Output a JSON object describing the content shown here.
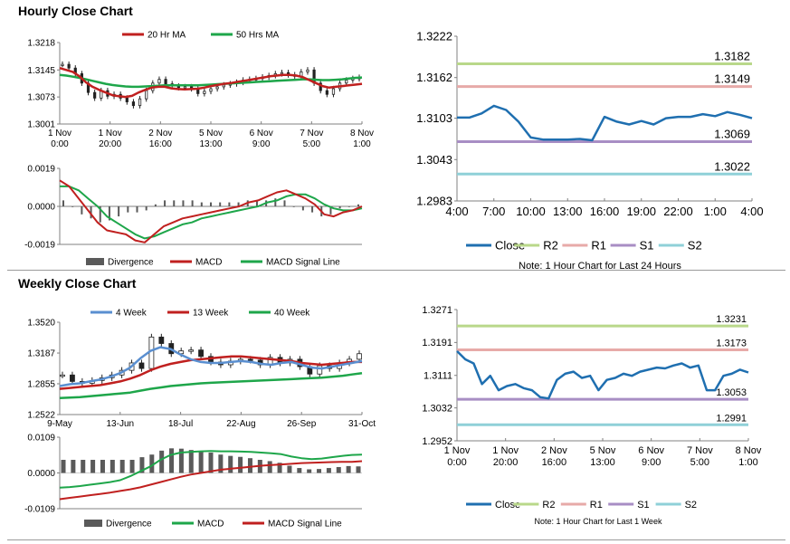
{
  "sections": {
    "hourly_title": "Hourly Close Chart",
    "weekly_title": "Weekly Close Chart"
  },
  "colors": {
    "ma20": "#c0201f",
    "ma50": "#1ea64a",
    "close": "#1f6fb0",
    "r2": "#b9d88a",
    "r1": "#e7aaa8",
    "s1": "#a88ec4",
    "s2": "#8fd0d8",
    "divergence": "#5a5a5a",
    "wk4": "#5a8fd0"
  },
  "chart_data": [
    {
      "id": "hourly_price",
      "type": "candlestick",
      "legend": [
        "20 Hr MA",
        "50 Hrs MA"
      ],
      "yticks": [
        "1.3218",
        "1.3145",
        "1.3073",
        "1.3001"
      ],
      "ylim": [
        1.3001,
        1.3218
      ],
      "xticks": [
        [
          "1 Nov",
          "0:00"
        ],
        [
          "1 Nov",
          "20:00"
        ],
        [
          "2 Nov",
          "16:00"
        ],
        [
          "5 Nov",
          "13:00"
        ],
        [
          "6 Nov",
          "9:00"
        ],
        [
          "7 Nov",
          "5:00"
        ],
        [
          "8 Nov",
          "1:00"
        ]
      ],
      "series": [
        {
          "name": "Close",
          "values": [
            1.316,
            1.315,
            1.3135,
            1.311,
            1.3085,
            1.307,
            1.309,
            1.3075,
            1.308,
            1.307,
            1.306,
            1.305,
            1.3068,
            1.309,
            1.311,
            1.312,
            1.3108,
            1.3102,
            1.3098,
            1.31,
            1.3095,
            1.3082,
            1.3088,
            1.3095,
            1.31,
            1.3105,
            1.3108,
            1.3112,
            1.3118,
            1.312,
            1.3122,
            1.3126,
            1.313,
            1.3135,
            1.3138,
            1.3132,
            1.3128,
            1.314,
            1.3145,
            1.311,
            1.309,
            1.308,
            1.3095,
            1.311,
            1.3118,
            1.3122,
            1.3125
          ]
        },
        {
          "name": "20 Hr MA",
          "values": [
            1.315,
            1.3145,
            1.314,
            1.3128,
            1.3112,
            1.31,
            1.3092,
            1.3085,
            1.3078,
            1.3075,
            1.3073,
            1.3076,
            1.3085,
            1.3092,
            1.3098,
            1.31,
            1.31,
            1.3096,
            1.3094,
            1.3093,
            1.3094,
            1.3095,
            1.3098,
            1.3102,
            1.3105,
            1.3108,
            1.311,
            1.3113,
            1.3116,
            1.3119,
            1.3122,
            1.3125,
            1.3128,
            1.313,
            1.3132,
            1.3132,
            1.313,
            1.3126,
            1.3118,
            1.311,
            1.3102,
            1.3098,
            1.31,
            1.3102,
            1.3104,
            1.3106,
            1.3108
          ]
        },
        {
          "name": "50 Hrs MA",
          "values": [
            1.3132,
            1.313,
            1.3127,
            1.3124,
            1.312,
            1.3116,
            1.3112,
            1.3108,
            1.3105,
            1.3103,
            1.3101,
            1.31,
            1.31,
            1.3101,
            1.3102,
            1.3103,
            1.3104,
            1.3104,
            1.3104,
            1.3104,
            1.3104,
            1.3104,
            1.3105,
            1.3106,
            1.3107,
            1.3108,
            1.3109,
            1.311,
            1.3111,
            1.3112,
            1.3113,
            1.3114,
            1.3115,
            1.3116,
            1.3117,
            1.3118,
            1.3119,
            1.312,
            1.312,
            1.3119,
            1.3118,
            1.3118,
            1.3119,
            1.312,
            1.3122,
            1.3124,
            1.3125
          ]
        }
      ]
    },
    {
      "id": "hourly_macd",
      "type": "macd",
      "legend": [
        "Divergence",
        "MACD",
        "MACD Signal Line"
      ],
      "yticks": [
        "0.0019",
        "0.0000",
        "-0.0019"
      ],
      "ylim": [
        -0.0019,
        0.0019
      ],
      "series": [
        {
          "name": "MACD",
          "values": [
            0.0013,
            0.001,
            0.0004,
            -0.0002,
            -0.0008,
            -0.0012,
            -0.0013,
            -0.0014,
            -0.0017,
            -0.0018,
            -0.0014,
            -0.001,
            -0.0008,
            -0.0006,
            -0.0005,
            -0.0004,
            -0.0003,
            -0.0002,
            -0.0001,
            0.0,
            0.0002,
            0.0003,
            0.0005,
            0.0007,
            0.0008,
            0.0006,
            0.0004,
            0.0001,
            -0.0004,
            -0.0005,
            -0.0003,
            -0.0002,
            0.0
          ]
        },
        {
          "name": "MACD Signal Line",
          "values": [
            0.001,
            0.001,
            0.0008,
            0.0004,
            0.0,
            -0.0005,
            -0.0008,
            -0.0011,
            -0.0014,
            -0.0016,
            -0.0015,
            -0.0013,
            -0.0011,
            -0.0009,
            -0.0008,
            -0.0006,
            -0.0005,
            -0.0004,
            -0.0003,
            -0.0002,
            -0.0001,
            0.0,
            0.0002,
            0.0003,
            0.0005,
            0.0006,
            0.0006,
            0.0004,
            0.0001,
            -0.0001,
            -0.0002,
            -0.0002,
            -0.0001
          ]
        },
        {
          "name": "Divergence",
          "values": [
            0.0003,
            0.0,
            -0.0004,
            -0.0006,
            -0.0008,
            -0.0007,
            -0.0005,
            -0.0003,
            -0.0003,
            -0.0002,
            0.0001,
            0.0003,
            0.0003,
            0.0003,
            0.0003,
            0.0002,
            0.0002,
            0.0002,
            0.0002,
            0.0002,
            0.0003,
            0.0003,
            0.0003,
            0.0004,
            0.0003,
            0.0,
            -0.0002,
            -0.0003,
            -0.0005,
            -0.0004,
            -0.0001,
            0.0,
            0.0001
          ]
        }
      ]
    },
    {
      "id": "hourly_pivot",
      "type": "line",
      "legend": [
        "Close",
        "R2",
        "R1",
        "S1",
        "S2"
      ],
      "note": "Note: 1 Hour Chart for Last 24 Hours",
      "yticks": [
        "1.3222",
        "1.3162",
        "1.3103",
        "1.3043",
        "1.2983"
      ],
      "ylim": [
        1.2983,
        1.3222
      ],
      "xticks": [
        "4:00",
        "7:00",
        "10:00",
        "13:00",
        "16:00",
        "19:00",
        "22:00",
        "1:00",
        "4:00"
      ],
      "levels": [
        {
          "name": "R2",
          "value": 1.3182,
          "label": "1.3182"
        },
        {
          "name": "R1",
          "value": 1.3149,
          "label": "1.3149"
        },
        {
          "name": "S1",
          "value": 1.3069,
          "label": "1.3069"
        },
        {
          "name": "S2",
          "value": 1.3022,
          "label": "1.3022"
        }
      ],
      "series": [
        {
          "name": "Close",
          "values": [
            1.3104,
            1.3104,
            1.311,
            1.3121,
            1.3115,
            1.3098,
            1.3075,
            1.3072,
            1.3072,
            1.3072,
            1.3073,
            1.3071,
            1.3105,
            1.3098,
            1.3094,
            1.3099,
            1.3094,
            1.3103,
            1.3105,
            1.3105,
            1.3109,
            1.3106,
            1.3112,
            1.3108,
            1.3103
          ]
        }
      ]
    },
    {
      "id": "weekly_pivot",
      "type": "line",
      "legend": [
        "Close",
        "R2",
        "R1",
        "S1",
        "S2"
      ],
      "note": "Note: 1 Hour Chart for Last 1 Week",
      "yticks": [
        "1.3271",
        "1.3191",
        "1.3111",
        "1.3032",
        "1.2952"
      ],
      "ylim": [
        1.2952,
        1.3271
      ],
      "xticks": [
        [
          "1 Nov",
          "0:00"
        ],
        [
          "1 Nov",
          "20:00"
        ],
        [
          "2 Nov",
          "16:00"
        ],
        [
          "5 Nov",
          "13:00"
        ],
        [
          "6 Nov",
          "9:00"
        ],
        [
          "7 Nov",
          "5:00"
        ],
        [
          "8 Nov",
          "1:00"
        ]
      ],
      "levels": [
        {
          "name": "R2",
          "value": 1.3231,
          "label": "1.3231"
        },
        {
          "name": "R1",
          "value": 1.3173,
          "label": "1.3173"
        },
        {
          "name": "S1",
          "value": 1.3053,
          "label": "1.3053"
        },
        {
          "name": "S2",
          "value": 1.2991,
          "label": "1.2991"
        }
      ],
      "series": [
        {
          "name": "Close",
          "values": [
            1.317,
            1.315,
            1.314,
            1.309,
            1.311,
            1.3075,
            1.3085,
            1.309,
            1.308,
            1.3075,
            1.3058,
            1.3055,
            1.31,
            1.3115,
            1.312,
            1.3105,
            1.311,
            1.3075,
            1.31,
            1.3105,
            1.3115,
            1.311,
            1.312,
            1.3125,
            1.313,
            1.3128,
            1.3135,
            1.314,
            1.313,
            1.3135,
            1.3075,
            1.3075,
            1.311,
            1.3115,
            1.3125,
            1.3118
          ]
        }
      ]
    },
    {
      "id": "weekly_price",
      "type": "candlestick",
      "legend": [
        "4 Week",
        "13 Week",
        "40 Week"
      ],
      "yticks": [
        "1.3520",
        "1.3187",
        "1.2855",
        "1.2522"
      ],
      "ylim": [
        1.2522,
        1.352
      ],
      "xticks": [
        "9-May",
        "13-Jun",
        "18-Jul",
        "22-Aug",
        "26-Sep",
        "31-Oct"
      ],
      "series": [
        {
          "name": "Close",
          "values": [
            1.295,
            1.288,
            1.286,
            1.289,
            1.292,
            1.295,
            1.3,
            1.308,
            1.302,
            1.336,
            1.329,
            1.318,
            1.321,
            1.322,
            1.315,
            1.309,
            1.306,
            1.31,
            1.312,
            1.311,
            1.306,
            1.314,
            1.308,
            1.312,
            1.304,
            1.296,
            1.305,
            1.302,
            1.308,
            1.312,
            1.318
          ]
        },
        {
          "name": "4 Week",
          "values": [
            1.283,
            1.285,
            1.286,
            1.288,
            1.29,
            1.293,
            1.297,
            1.303,
            1.313,
            1.321,
            1.325,
            1.323,
            1.317,
            1.312,
            1.309,
            1.308,
            1.308,
            1.309,
            1.31,
            1.309,
            1.307,
            1.306,
            1.308,
            1.309,
            1.306,
            1.303,
            1.302,
            1.304,
            1.306,
            1.308,
            1.31
          ]
        },
        {
          "name": "13 Week",
          "values": [
            1.28,
            1.281,
            1.282,
            1.283,
            1.284,
            1.286,
            1.288,
            1.291,
            1.295,
            1.3,
            1.304,
            1.307,
            1.309,
            1.311,
            1.312,
            1.313,
            1.314,
            1.315,
            1.315,
            1.314,
            1.313,
            1.312,
            1.311,
            1.31,
            1.308,
            1.307,
            1.306,
            1.307,
            1.308,
            1.309,
            1.309
          ]
        },
        {
          "name": "40 Week",
          "values": [
            1.27,
            1.2705,
            1.271,
            1.272,
            1.273,
            1.274,
            1.275,
            1.276,
            1.278,
            1.28,
            1.2815,
            1.283,
            1.284,
            1.285,
            1.286,
            1.2865,
            1.287,
            1.2875,
            1.288,
            1.2885,
            1.289,
            1.2895,
            1.29,
            1.2905,
            1.291,
            1.2915,
            1.292,
            1.293,
            1.294,
            1.2955,
            1.297
          ]
        }
      ]
    },
    {
      "id": "weekly_macd",
      "type": "macd",
      "legend": [
        "Divergence",
        "MACD",
        "MACD Signal Line"
      ],
      "yticks": [
        "0.0109",
        "0.0000",
        "-0.0109"
      ],
      "ylim": [
        -0.0109,
        0.0109
      ],
      "series": [
        {
          "name": "MACD",
          "values": [
            -0.0045,
            -0.0043,
            -0.004,
            -0.0036,
            -0.0032,
            -0.0028,
            -0.0022,
            -0.001,
            0.0005,
            0.002,
            0.004,
            0.0055,
            0.0062,
            0.0064,
            0.0066,
            0.0067,
            0.0066,
            0.0066,
            0.0065,
            0.0064,
            0.0062,
            0.006,
            0.0057,
            0.005,
            0.0045,
            0.0042,
            0.0044,
            0.0048,
            0.0052,
            0.0055,
            0.0056
          ]
        },
        {
          "name": "MACD Signal Line",
          "values": [
            -0.008,
            -0.0076,
            -0.0072,
            -0.0068,
            -0.0064,
            -0.006,
            -0.0055,
            -0.005,
            -0.0044,
            -0.0036,
            -0.0028,
            -0.002,
            -0.0012,
            -0.0005,
            0.0,
            0.0005,
            0.001,
            0.0013,
            0.0016,
            0.0019,
            0.0022,
            0.0024,
            0.0026,
            0.0028,
            0.003,
            0.0031,
            0.0032,
            0.0033,
            0.0034,
            0.0034,
            0.0036
          ]
        },
        {
          "name": "Divergence",
          "values": [
            0.004,
            0.004,
            0.004,
            0.004,
            0.004,
            0.004,
            0.004,
            0.004,
            0.0048,
            0.0056,
            0.0068,
            0.0075,
            0.0074,
            0.007,
            0.0066,
            0.0062,
            0.0056,
            0.0052,
            0.0049,
            0.0045,
            0.004,
            0.0036,
            0.0031,
            0.0022,
            0.0015,
            0.0011,
            0.0012,
            0.0015,
            0.0018,
            0.0021,
            0.002
          ]
        }
      ]
    }
  ]
}
